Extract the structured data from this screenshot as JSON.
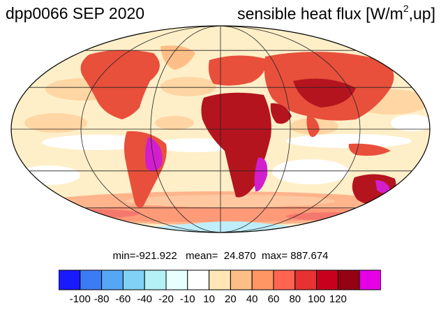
{
  "title": {
    "experiment": "dpp0066 SEP 2020",
    "variable_main": "sensible heat flux [W/m",
    "variable_sup": "2",
    "variable_tail": ",up]"
  },
  "stats": {
    "text": "min=-921.922   mean=  24.870  max= 887.674"
  },
  "colorbar": {
    "colors": [
      "#1a1aff",
      "#3b7cf5",
      "#57a6f5",
      "#7fd2f5",
      "#b4f0f5",
      "#e6ffff",
      "#ffffff",
      "#ffe6b4",
      "#ffbe87",
      "#ff9664",
      "#ff6450",
      "#e63232",
      "#c8001e",
      "#960014",
      "#e600e6"
    ],
    "tick_labels": [
      "-100",
      "-80",
      "-60",
      "-40",
      "-20",
      "-10",
      "10",
      "20",
      "40",
      "60",
      "80",
      "100",
      "120"
    ]
  },
  "map": {
    "projection": "mollweide",
    "ocean_color": "#ffefc8",
    "land_color": "#e8503c",
    "hot_land_color": "#b4141e",
    "extreme_color": "#d21ecd",
    "ice_color": "#bfeefa",
    "storm_track_color": "#ff9e80"
  }
}
